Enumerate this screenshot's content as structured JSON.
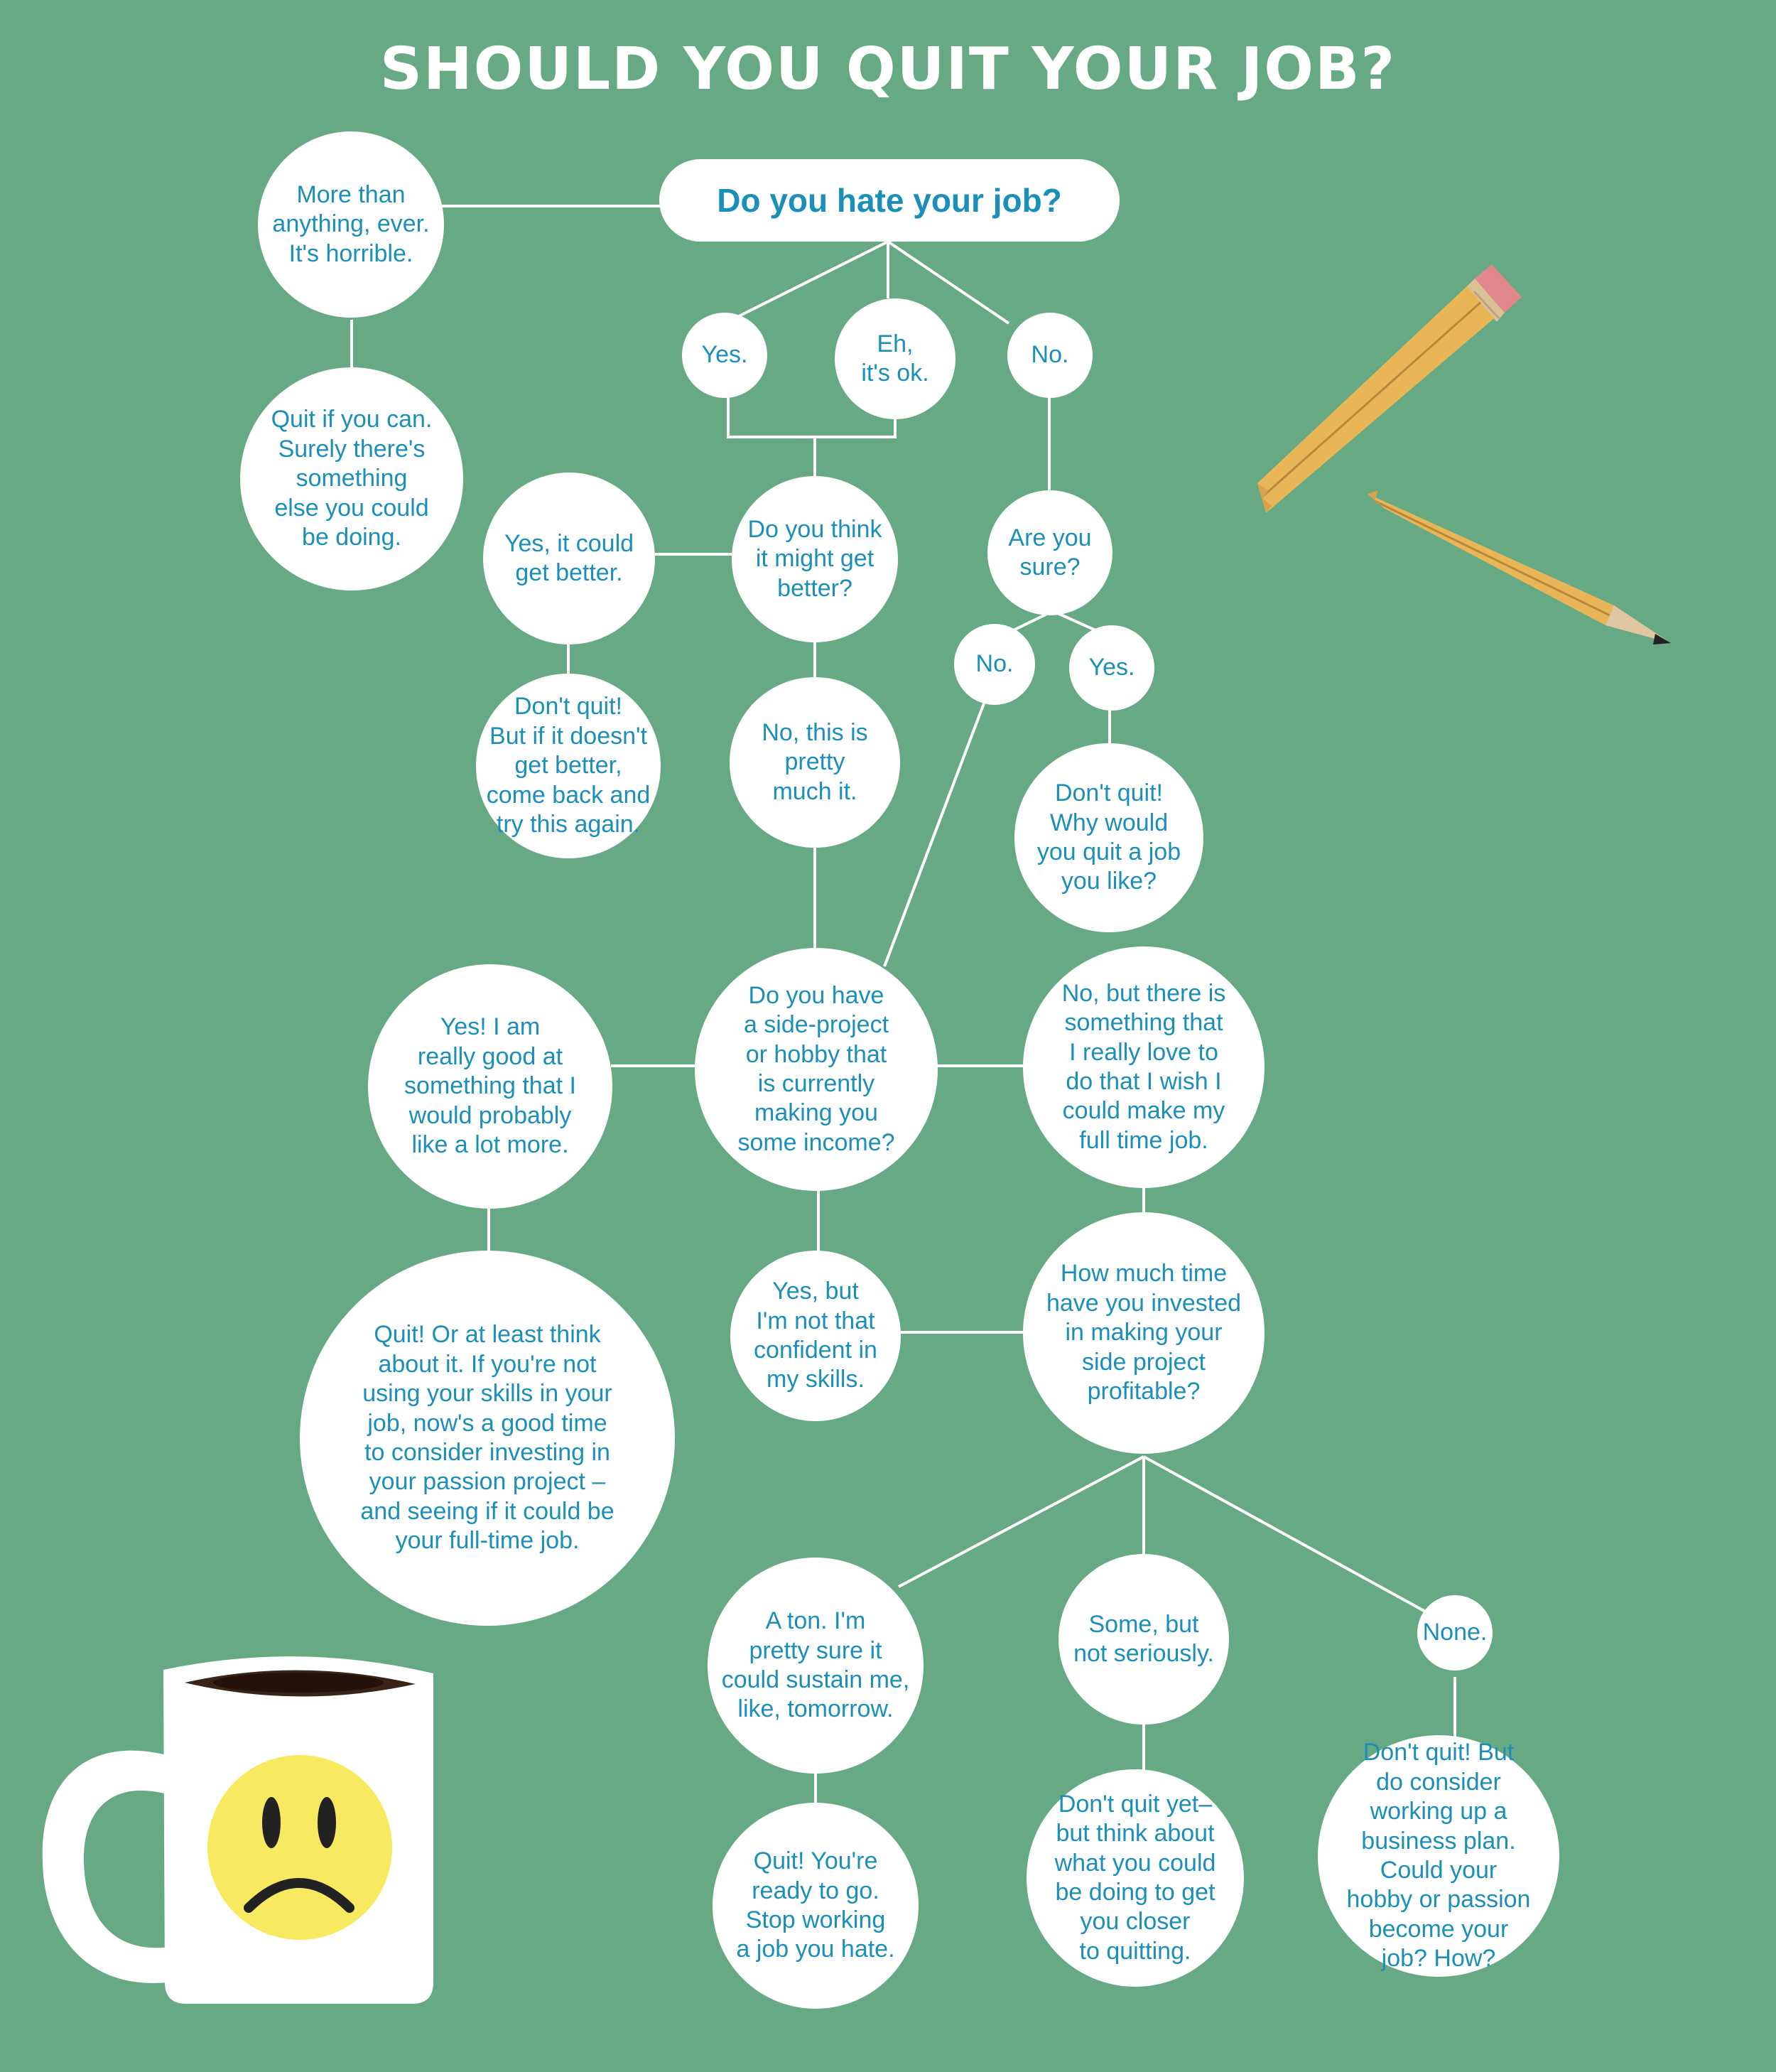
{
  "title": "SHOULD YOU QUIT YOUR JOB?",
  "colors": {
    "background": "#66a982",
    "node": "#ffffff",
    "text": "#1b8fba",
    "line": "#ffffff"
  },
  "nodes": {
    "hate_job": "Do you hate your job?",
    "more_than_anything": "More than\nanything, ever.\nIt's horrible.",
    "quit_if_you_can": "Quit if you can.\nSurely there's\nsomething\nelse you could\nbe doing.",
    "yes_1": "Yes.",
    "eh_ok": "Eh,\nit's ok.",
    "no_1": "No.",
    "might_get_better": "Do you think\nit might get\nbetter?",
    "yes_could_get_better": "Yes, it could\nget better.",
    "dont_quit_come_back": "Don't quit!\nBut if it doesn't\nget better,\ncome back and\ntry this again.",
    "no_pretty_much": "No, this is\npretty\nmuch it.",
    "are_you_sure": "Are you\nsure?",
    "no_2": "No.",
    "yes_2": "Yes.",
    "dont_quit_why": "Don't quit!\nWhy would\nyou quit a job\nyou like?",
    "side_project_income": "Do you have\na side-project\nor hobby that\nis currently\nmaking you\nsome income?",
    "yes_really_good": "Yes! I am\nreally good at\nsomething that I\nwould probably\nlike a lot more.",
    "no_but_love": "No, but there is\nsomething that\nI really love to\ndo that I wish I\ncould make my\nfull time job.",
    "quit_or_think": "Quit! Or at least think\nabout it. If you're not\nusing your skills in your\njob, now's a good time\nto consider investing in\nyour passion project –\nand seeing if it could be\nyour full-time job.",
    "yes_not_confident": "Yes, but\nI'm not that\nconfident in\nmy skills.",
    "how_much_time": "How much time\nhave you invested\nin making your\nside project\nprofitable?",
    "a_ton": "A ton. I'm\npretty sure it\ncould sustain me,\nlike, tomorrow.",
    "some_not_seriously": "Some, but\nnot seriously.",
    "none": "None.",
    "quit_ready": "Quit! You're\nready to go.\nStop working\na job you hate.",
    "dont_quit_yet": "Don't quit yet–\nbut think about\nwhat you could\nbe doing to get\nyou closer\nto quitting.",
    "dont_quit_business_plan": "Don't quit! But\ndo consider\nworking up a\nbusiness plan.\nCould your\nhobby or passion\nbecome your\njob? How?"
  },
  "illustrations": {
    "pencil": "broken-pencil-icon",
    "mug": "coffee-mug-icon",
    "face": "sad-face-icon"
  }
}
